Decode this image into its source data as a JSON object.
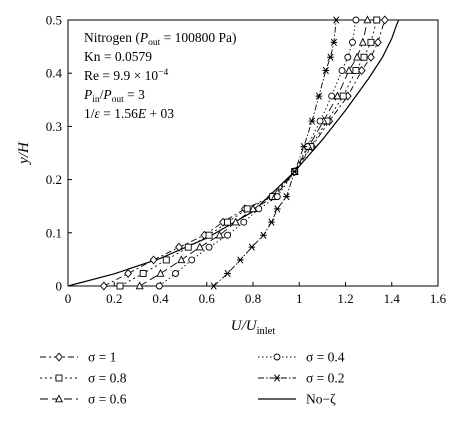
{
  "chart_data": {
    "type": "line",
    "xlabel": "U/U_inlet",
    "ylabel": "y/H",
    "xlim": [
      0,
      1.6
    ],
    "ylim": [
      0,
      0.5
    ],
    "xticks": [
      "0",
      "0.2",
      "0.4",
      "0.6",
      "0.8",
      "1",
      "1.2",
      "1.4",
      "1.6"
    ],
    "yticks": [
      "0",
      "0.1",
      "0.2",
      "0.3",
      "0.4",
      "0.5"
    ],
    "grid": false,
    "legend_placement": "bottom",
    "annotations": [
      "Nitrogen (P_out = 100800 Pa)",
      "Kn = 0.0579",
      "Re = 9.9 × 10^−4",
      "P_in/P_out = 3",
      "1/ε = 1.56E + 03"
    ],
    "series": [
      {
        "name": "σ = 1",
        "marker": "diamond",
        "dash": "6,3,2,3",
        "x": [
          0.155,
          0.26,
          0.37,
          0.48,
          0.59,
          0.67,
          0.765,
          0.88,
          0.98,
          1.055,
          1.13,
          1.21,
          1.27,
          1.31,
          1.34,
          1.37
        ],
        "y": [
          0,
          0.0235,
          0.049,
          0.073,
          0.0955,
          0.12,
          0.145,
          0.168,
          0.215,
          0.262,
          0.31,
          0.357,
          0.405,
          0.43,
          0.458,
          0.5
        ]
      },
      {
        "name": "σ = 0.8",
        "marker": "square",
        "dash": "2,3",
        "x": [
          0.225,
          0.325,
          0.425,
          0.52,
          0.61,
          0.69,
          0.775,
          0.885,
          0.98,
          1.05,
          1.12,
          1.19,
          1.245,
          1.28,
          1.31,
          1.335
        ],
        "y": [
          0,
          0.0235,
          0.049,
          0.073,
          0.0955,
          0.12,
          0.145,
          0.168,
          0.215,
          0.262,
          0.31,
          0.357,
          0.405,
          0.43,
          0.458,
          0.5
        ]
      },
      {
        "name": "σ = 0.6",
        "marker": "triangle",
        "dash": "8,4",
        "x": [
          0.31,
          0.4,
          0.49,
          0.57,
          0.655,
          0.725,
          0.8,
          0.895,
          0.98,
          1.04,
          1.105,
          1.165,
          1.215,
          1.25,
          1.275,
          1.295
        ],
        "y": [
          0,
          0.0235,
          0.049,
          0.073,
          0.0955,
          0.12,
          0.145,
          0.168,
          0.215,
          0.262,
          0.31,
          0.357,
          0.405,
          0.43,
          0.458,
          0.5
        ]
      },
      {
        "name": "σ = 0.4",
        "marker": "circle",
        "dash": "1.5,2.5",
        "x": [
          0.395,
          0.465,
          0.535,
          0.61,
          0.69,
          0.76,
          0.825,
          0.905,
          0.98,
          1.035,
          1.09,
          1.14,
          1.185,
          1.21,
          1.23,
          1.245
        ],
        "y": [
          0,
          0.0235,
          0.049,
          0.073,
          0.0955,
          0.12,
          0.145,
          0.168,
          0.215,
          0.262,
          0.31,
          0.357,
          0.405,
          0.43,
          0.458,
          0.5
        ]
      },
      {
        "name": "σ = 0.2",
        "marker": "asterisk",
        "dash": "6,2,1.5,2",
        "x": [
          0.63,
          0.69,
          0.745,
          0.795,
          0.845,
          0.88,
          0.905,
          0.945,
          0.98,
          1.02,
          1.055,
          1.085,
          1.115,
          1.135,
          1.15,
          1.16
        ],
        "y": [
          0,
          0.0235,
          0.049,
          0.073,
          0.0955,
          0.12,
          0.145,
          0.168,
          0.215,
          0.262,
          0.31,
          0.357,
          0.405,
          0.43,
          0.458,
          0.5
        ]
      },
      {
        "name": "No−ζ",
        "marker": "none",
        "dash": "",
        "x": [
          0,
          0.2,
          0.4,
          0.6,
          0.8,
          0.98,
          1.1,
          1.2,
          1.3,
          1.36,
          1.4,
          1.42,
          1.43
        ],
        "y": [
          0,
          0.023,
          0.052,
          0.09,
          0.14,
          0.215,
          0.275,
          0.33,
          0.39,
          0.43,
          0.465,
          0.49,
          0.5
        ]
      }
    ]
  }
}
